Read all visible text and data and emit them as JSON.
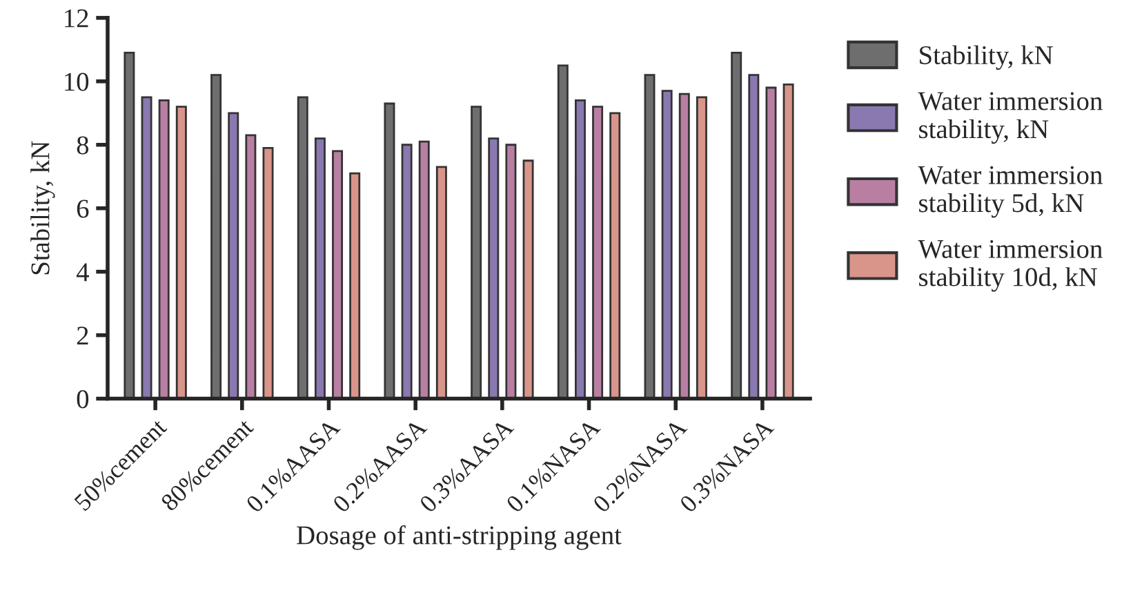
{
  "chart_data": {
    "type": "bar",
    "xlabel": "Dosage of anti-stripping agent",
    "ylabel": "Stability, kN",
    "categories": [
      "50%cement",
      "80%cement",
      "0.1%AASA",
      "0.2%AASA",
      "0.3%AASA",
      "0.1%NASA",
      "0.2%NASA",
      "0.3%NASA"
    ],
    "series": [
      {
        "name": "Stability, kN",
        "color": "#6e6e6e",
        "values": [
          10.9,
          10.2,
          9.5,
          9.3,
          9.2,
          10.5,
          10.2,
          10.9
        ]
      },
      {
        "name": "Water immersion stability, kN",
        "color": "#8a78b0",
        "values": [
          9.5,
          9.0,
          8.2,
          8.0,
          8.2,
          9.4,
          9.7,
          10.2
        ]
      },
      {
        "name": "Water immersion stability 5d, kN",
        "color": "#b87fa3",
        "values": [
          9.4,
          8.3,
          7.8,
          8.1,
          8.0,
          9.2,
          9.6,
          9.8
        ]
      },
      {
        "name": "Water immersion stability 10d, kN",
        "color": "#d9958a",
        "values": [
          9.2,
          7.9,
          7.1,
          7.3,
          7.5,
          9.0,
          9.5,
          9.9
        ]
      }
    ],
    "ylim": [
      0,
      12
    ],
    "yticks": [
      0,
      2,
      4,
      6,
      8,
      10,
      12
    ],
    "grid": false,
    "legend": "right"
  }
}
